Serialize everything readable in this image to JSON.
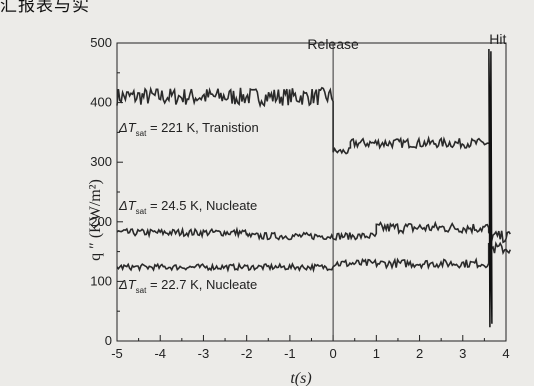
{
  "header_fragment": "汇报表与实",
  "chart_data": {
    "type": "line",
    "xlabel": "t(s)",
    "ylabel": "q ″ (KW/m²)",
    "xlim": [
      -5,
      4
    ],
    "ylim": [
      0,
      500
    ],
    "x_ticks": [
      "-5",
      "-4",
      "-3",
      "-2",
      "-1",
      "0",
      "1",
      "2",
      "3",
      "4"
    ],
    "y_ticks": [
      "0",
      "100",
      "200",
      "300",
      "400",
      "500"
    ],
    "events": [
      {
        "label": "Release",
        "x": 0
      },
      {
        "label": "Hit",
        "x": 3.65
      }
    ],
    "series": [
      {
        "name": "ΔT_sat = 221 K, Tranistion",
        "label_parts": [
          "ΔT",
          "sat",
          " = 221 K, Tranistion"
        ],
        "segments": [
          {
            "x_start": -5,
            "x_end": 0,
            "mean": 410,
            "noise": 15
          },
          {
            "x_start": 0,
            "x_end": 0.4,
            "mean": 318,
            "noise": 6
          },
          {
            "x_start": 0.4,
            "x_end": 3.6,
            "mean": 332,
            "noise": 8
          }
        ]
      },
      {
        "name": "ΔT_sat = 24.5 K, Nucleate",
        "label_parts": [
          "ΔT",
          "sat",
          " = 24.5 K, Nucleate"
        ],
        "segments": [
          {
            "x_start": -5,
            "x_end": -2,
            "mean": 182,
            "noise": 6
          },
          {
            "x_start": -2,
            "x_end": 1,
            "mean": 176,
            "noise": 6
          },
          {
            "x_start": 1,
            "x_end": 3.6,
            "mean": 190,
            "noise": 9
          },
          {
            "x_start": 3.6,
            "x_end": 4.1,
            "mean": 175,
            "noise": 10
          }
        ]
      },
      {
        "name": "ΔT_sat = 22.7 K, Nucleate",
        "label_parts": [
          "ΔT",
          "sat",
          " = 22.7 K, Nucleate"
        ],
        "segments": [
          {
            "x_start": -5,
            "x_end": 0,
            "mean": 124,
            "noise": 5
          },
          {
            "x_start": 0,
            "x_end": 3.6,
            "mean": 130,
            "noise": 7
          },
          {
            "x_start": 3.6,
            "x_end": 4.1,
            "mean": 155,
            "noise": 10
          }
        ]
      }
    ],
    "hit_spike": {
      "x": 3.65,
      "min": 0,
      "max": 490
    }
  }
}
